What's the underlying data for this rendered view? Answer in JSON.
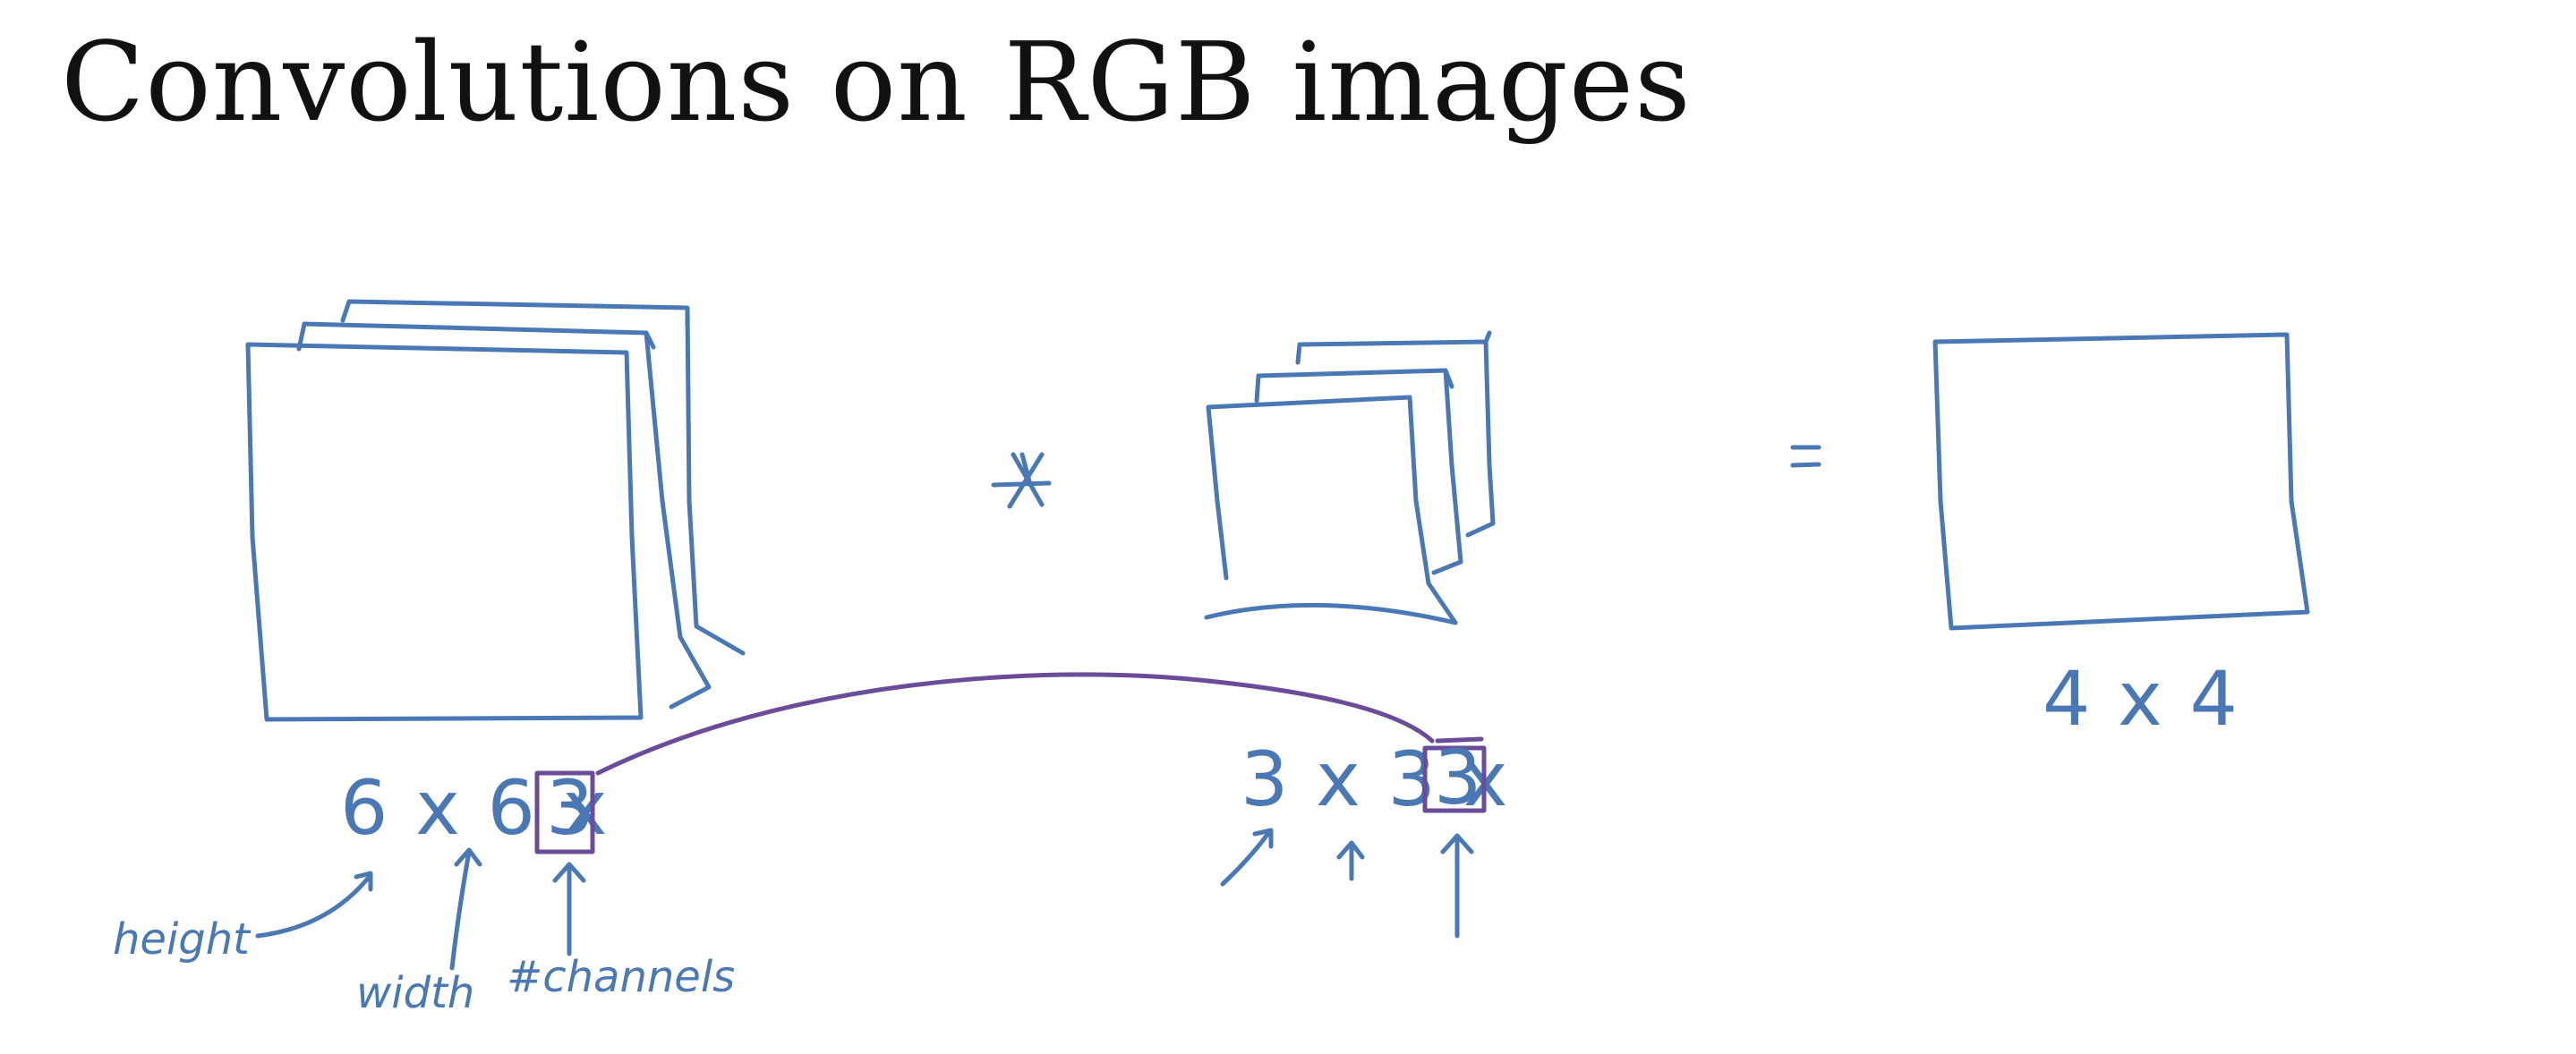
{
  "title": "Convolutions on RGB images",
  "input": {
    "dims_prefix": "6 x 6 x",
    "channels_boxed": "3",
    "labels": {
      "height": "height",
      "width": "width",
      "channels": "#channels"
    }
  },
  "operator": "*",
  "filter": {
    "dims_prefix": "3 x 3 x",
    "channels_boxed": "3"
  },
  "equals": "=",
  "output": {
    "dims": "4 x 4"
  },
  "colors": {
    "ink_blue": "#4a78b5",
    "ink_purple": "#6b4c9a",
    "title_text": "#111111",
    "background": "#ffffff"
  }
}
